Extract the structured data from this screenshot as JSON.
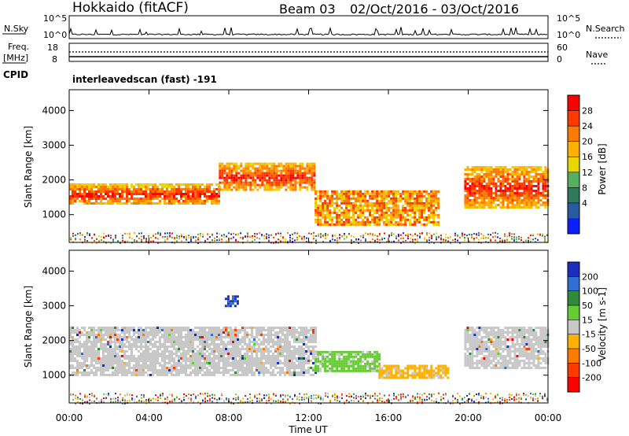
{
  "header": {
    "radar": "Hokkaido (fitACF)",
    "beam": "Beam 03",
    "daterange": "02/Oct/2016 - 03/Oct/2016"
  },
  "top_panels": {
    "nsky_label": "N.Sky",
    "nsearch_label": "N.Search",
    "nsky_ticks": [
      "10^5",
      "10^0"
    ],
    "nsearch_ticks": [
      "10^5",
      "10^0"
    ],
    "freq_label": "Freq.",
    "freq_unit": "[MHz]",
    "freq_ticks": [
      "18",
      "8"
    ],
    "nave_label": "Nave",
    "nave_ticks": [
      "60",
      "0"
    ],
    "cpid_label": "CPID",
    "cpid_value": "interleavedscan (fast) -191"
  },
  "chart_data": [
    {
      "type": "heatmap",
      "name": "power",
      "xlabel": "Time UT",
      "ylabel": "Slant Range [km]",
      "x_ticks": [
        "00:00",
        "04:00",
        "08:00",
        "12:00",
        "16:00",
        "20:00",
        "00:00"
      ],
      "xlim_hours": [
        0,
        24
      ],
      "y_ticks": [
        1000,
        2000,
        3000,
        4000
      ],
      "ylim": [
        200,
        4600
      ],
      "colorbar": {
        "label": "Power [dB]",
        "ticks": [
          "28",
          "24",
          "20",
          "16",
          "12",
          "8",
          "4"
        ],
        "colors": [
          "#ff0000",
          "#ff3a00",
          "#ff7a00",
          "#ffb000",
          "#e8d800",
          "#53b060",
          "#2f7a5a",
          "#2a5aa0",
          "#0a1eff"
        ]
      },
      "echo_regions": [
        {
          "t_start": 0,
          "t_end": 7.5,
          "range_start": 1300,
          "range_end": 1900,
          "level": "high"
        },
        {
          "t_start": 7.5,
          "t_end": 12.3,
          "range_start": 1700,
          "range_end": 2500,
          "level": "high"
        },
        {
          "t_start": 12.3,
          "t_end": 18.5,
          "range_start": 700,
          "range_end": 1700,
          "level": "medium"
        },
        {
          "t_start": 19.8,
          "t_end": 24,
          "range_start": 1200,
          "range_end": 2400,
          "level": "high"
        }
      ]
    },
    {
      "type": "heatmap",
      "name": "velocity",
      "xlabel": "Time UT",
      "ylabel": "Slant Range [km]",
      "x_ticks": [
        "00:00",
        "04:00",
        "08:00",
        "12:00",
        "16:00",
        "20:00",
        "00:00"
      ],
      "xlim_hours": [
        0,
        24
      ],
      "y_ticks": [
        1000,
        2000,
        3000,
        4000
      ],
      "ylim": [
        200,
        4600
      ],
      "colorbar": {
        "label": "Velocity [m s-1]",
        "ticks": [
          "200",
          "100",
          "50",
          "15",
          "-15",
          "-50",
          "-100",
          "-200"
        ],
        "colors": [
          "#1a2fbf",
          "#2f6fd0",
          "#2f8a3a",
          "#66cc33",
          "#c8c8c8",
          "#ffb000",
          "#ff7a00",
          "#ff3a00",
          "#ff0000"
        ]
      },
      "echo_regions": [
        {
          "t_start": 0,
          "t_end": 12.3,
          "range_start": 1000,
          "range_end": 2400,
          "velocity": "near-zero"
        },
        {
          "t_start": 12.3,
          "t_end": 15.5,
          "range_start": 1100,
          "range_end": 1700,
          "velocity": "+15 to +50"
        },
        {
          "t_start": 15.5,
          "t_end": 19,
          "range_start": 900,
          "range_end": 1300,
          "velocity": "-15 to -50"
        },
        {
          "t_start": 7.8,
          "t_end": 8.5,
          "range_start": 3000,
          "range_end": 3300,
          "velocity": "+100 to +200"
        },
        {
          "t_start": 19.8,
          "t_end": 24,
          "range_start": 1200,
          "range_end": 2400,
          "velocity": "near-zero"
        }
      ]
    }
  ]
}
